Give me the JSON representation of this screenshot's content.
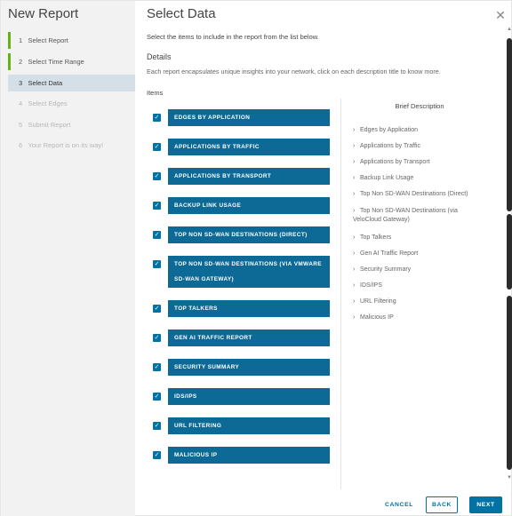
{
  "wizard": {
    "title": "New Report"
  },
  "steps": [
    {
      "num": "1",
      "label": "Select Report"
    },
    {
      "num": "2",
      "label": "Select Time Range"
    },
    {
      "num": "3",
      "label": "Select Data"
    },
    {
      "num": "4",
      "label": "Select Edges"
    },
    {
      "num": "5",
      "label": "Submit Report"
    },
    {
      "num": "6",
      "label": "Your Report is on its way!"
    }
  ],
  "page": {
    "title": "Select Data",
    "close_glyph": "✕",
    "intro": "Select the items to include in the report from the list below.",
    "details_heading": "Details",
    "details_text": "Each report encapsulates unique insights into your network, click on each description title to know more.",
    "items_heading": "Items",
    "desc_heading": "Brief Description"
  },
  "items": [
    {
      "label": "EDGES BY APPLICATION",
      "checked": true
    },
    {
      "label": "APPLICATIONS BY TRAFFIC",
      "checked": true
    },
    {
      "label": "APPLICATIONS BY TRANSPORT",
      "checked": true
    },
    {
      "label": "BACKUP LINK USAGE",
      "checked": true
    },
    {
      "label": "TOP NON SD-WAN DESTINATIONS (DIRECT)",
      "checked": true
    },
    {
      "label": "TOP NON SD-WAN DESTINATIONS (VIA VMWARE SD-WAN GATEWAY)",
      "checked": true
    },
    {
      "label": "TOP TALKERS",
      "checked": true
    },
    {
      "label": "GEN AI TRAFFIC REPORT",
      "checked": true
    },
    {
      "label": "SECURITY SUMMARY",
      "checked": true
    },
    {
      "label": "IDS/IPS",
      "checked": true
    },
    {
      "label": "URL FILTERING",
      "checked": true
    },
    {
      "label": "MALICIOUS IP",
      "checked": true
    }
  ],
  "descriptions": [
    "Edges by Application",
    "Applications by Traffic",
    "Applications by Transport",
    "Backup Link Usage",
    "Top Non SD-WAN Destinations (Direct)",
    "Top Non SD-WAN Destinations (via VeloCloud Gateway)",
    "Top Talkers",
    "Gen AI Traffic Report",
    "Security Summary",
    "IDS/IPS",
    "URL Filtering",
    "Malicious IP"
  ],
  "footer": {
    "cancel": "CANCEL",
    "back": "BACK",
    "next": "NEXT"
  },
  "colors": {
    "accent": "#0072a3",
    "item_button": "#0d6a97",
    "step_done": "#60b515",
    "step_active_bg": "#d5dfe8"
  },
  "icons": {
    "checkbox": "checkmark-icon",
    "chevron": "chevron-right-icon",
    "close": "close-icon"
  }
}
